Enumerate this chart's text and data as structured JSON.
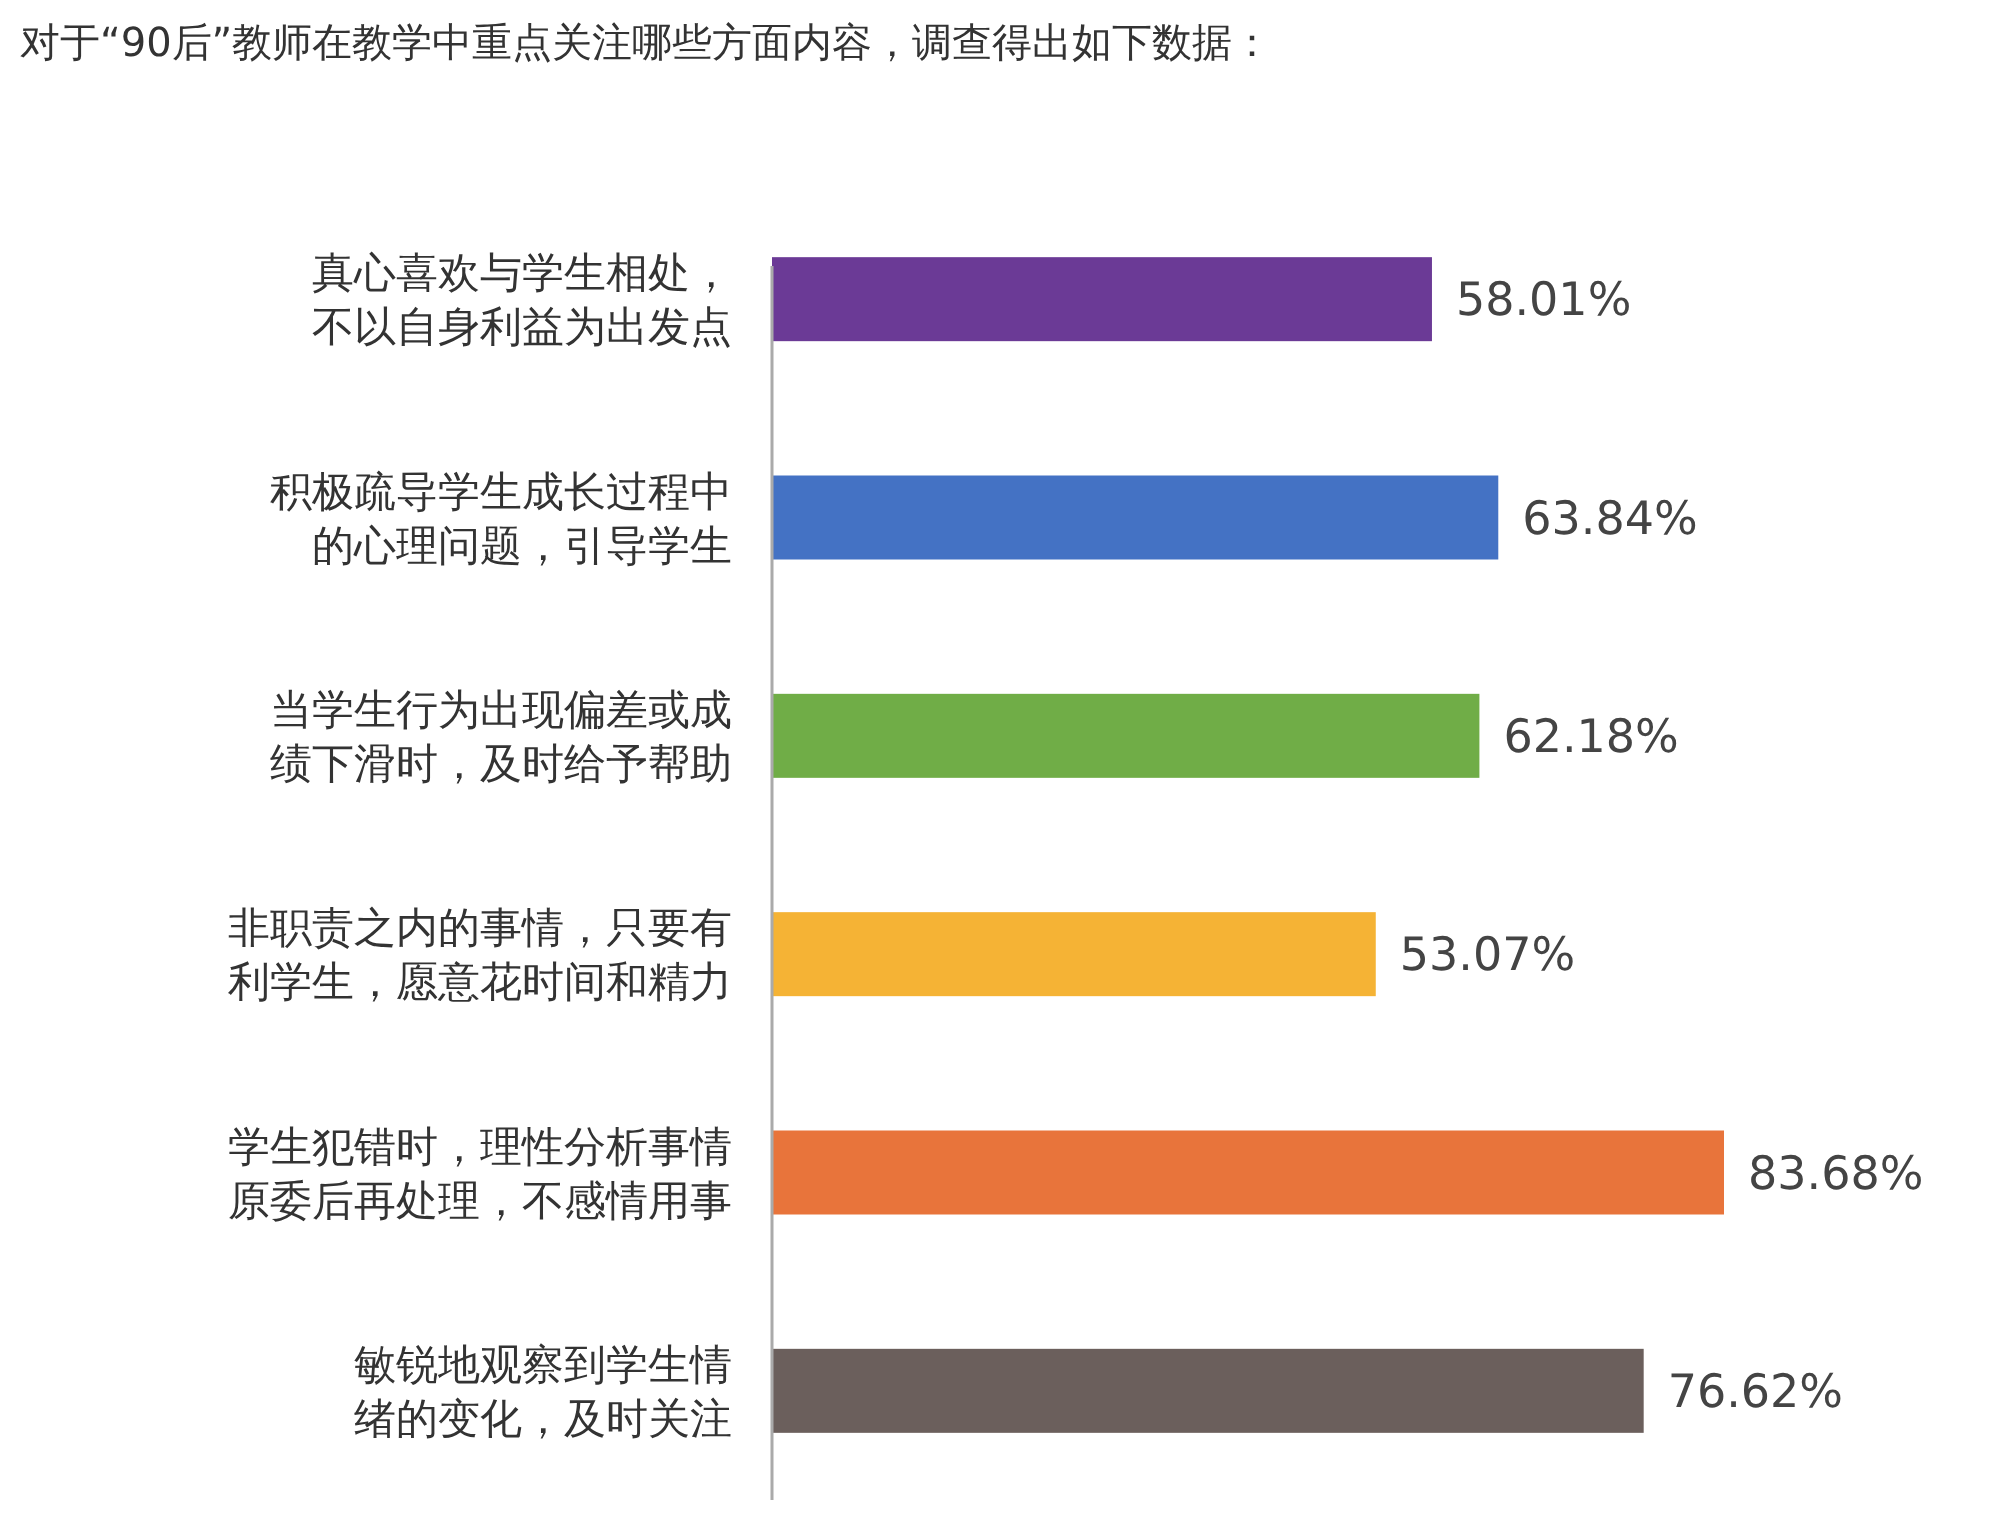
{
  "chart_data": {
    "type": "bar",
    "orientation": "horizontal",
    "title": "对于“90后”教师在教学中重点关注哪些方面内容，调查得出如下数据：",
    "categories": [
      "真心喜欢与学生相处，不以自身利益为出发点",
      "积极疏导学生成长过程中的心理问题，引导学生",
      "当学生行为出现偏差或成绩下滑时，及时给予帮助",
      "非职责之内的事情，只要有利学生，愿意花时间和精力",
      "学生犯错时，理性分析事情原委后再处理，不感情用事",
      "敏锐地观察到学生情绪的变化，及时关注"
    ],
    "values": [
      58.01,
      63.84,
      62.18,
      53.07,
      83.68,
      76.62
    ],
    "value_labels": [
      "58.01%",
      "63.84%",
      "62.18%",
      "53.07%",
      "83.68%",
      "76.62%"
    ],
    "colors": [
      "#6b3a96",
      "#4472c4",
      "#70ad47",
      "#f5b335",
      "#e8743b",
      "#6b5f5c"
    ]
  }
}
